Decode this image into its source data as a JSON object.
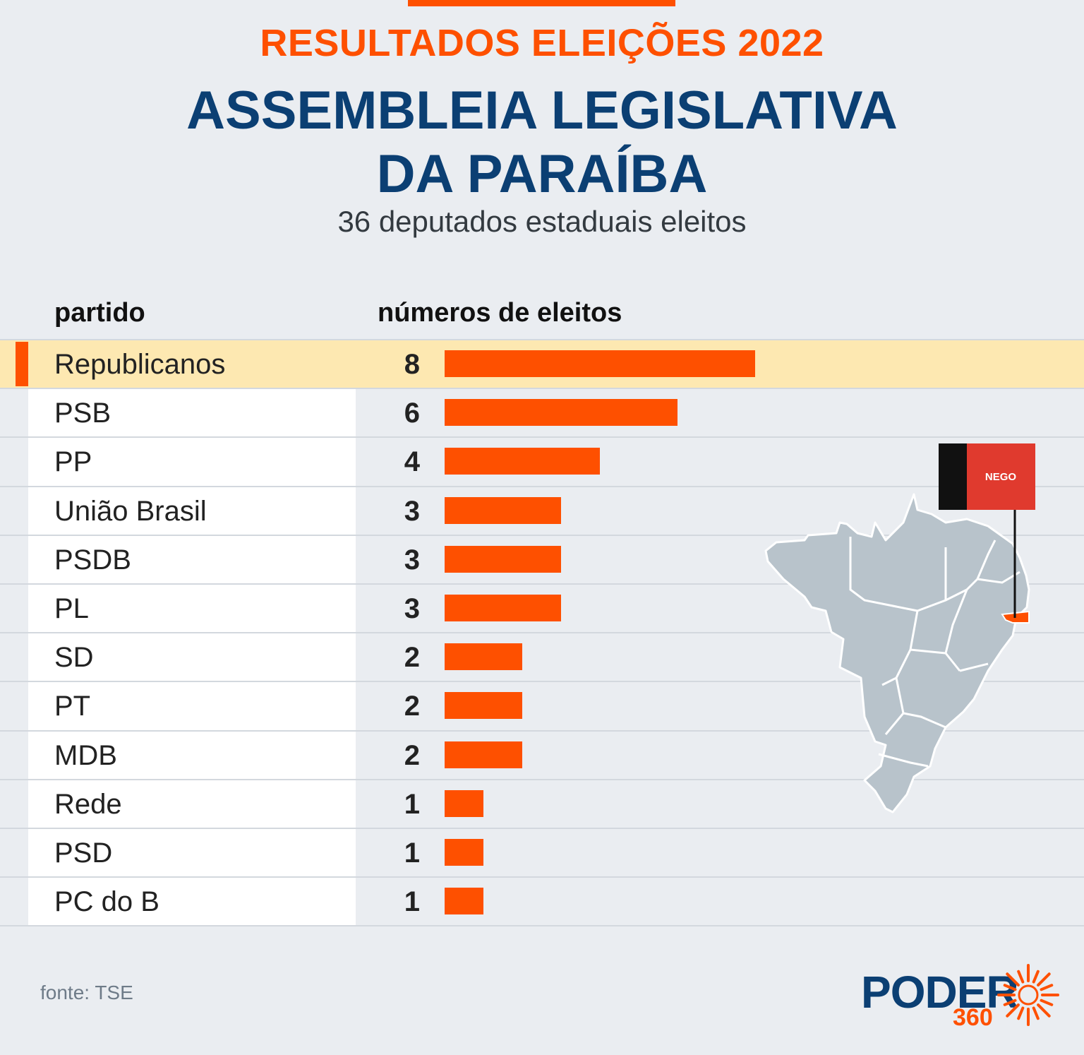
{
  "header": {
    "kicker": "RESULTADOS ELEIÇÕES 2022",
    "title_line1": "ASSEMBLEIA LEGISLATIVA",
    "title_line2": "DA PARAÍBA",
    "subtitle": "36 deputados estaduais eleitos"
  },
  "columns": {
    "party": "partido",
    "count": "números de eleitos"
  },
  "colors": {
    "accent": "#fe5000",
    "title": "#0b3f73",
    "highlight": "#fde8b1",
    "map": "#b8c3cb",
    "flag_black": "#111111",
    "flag_red": "#e03a2e"
  },
  "chart_data": {
    "type": "bar",
    "orientation": "horizontal",
    "categories": [
      "Republicanos",
      "PSB",
      "PP",
      "União Brasil",
      "PSDB",
      "PL",
      "SD",
      "PT",
      "MDB",
      "Rede",
      "PSD",
      "PC do B"
    ],
    "values": [
      8,
      6,
      4,
      3,
      3,
      3,
      2,
      2,
      2,
      1,
      1,
      1
    ],
    "value_labels": [
      "8",
      "6",
      "4",
      "3",
      "3",
      "3",
      "2",
      "2",
      "2",
      "1",
      "1",
      "1"
    ],
    "highlighted": "Republicanos",
    "xlim": [
      0,
      8
    ]
  },
  "map": {
    "flag_text": "NEGO",
    "icon": "brazil-map-paraiba-highlight"
  },
  "footer": {
    "source": "fonte: TSE",
    "logo_word": "PODER",
    "logo_number": "360",
    "logo_icon": "sun-burst-icon"
  }
}
